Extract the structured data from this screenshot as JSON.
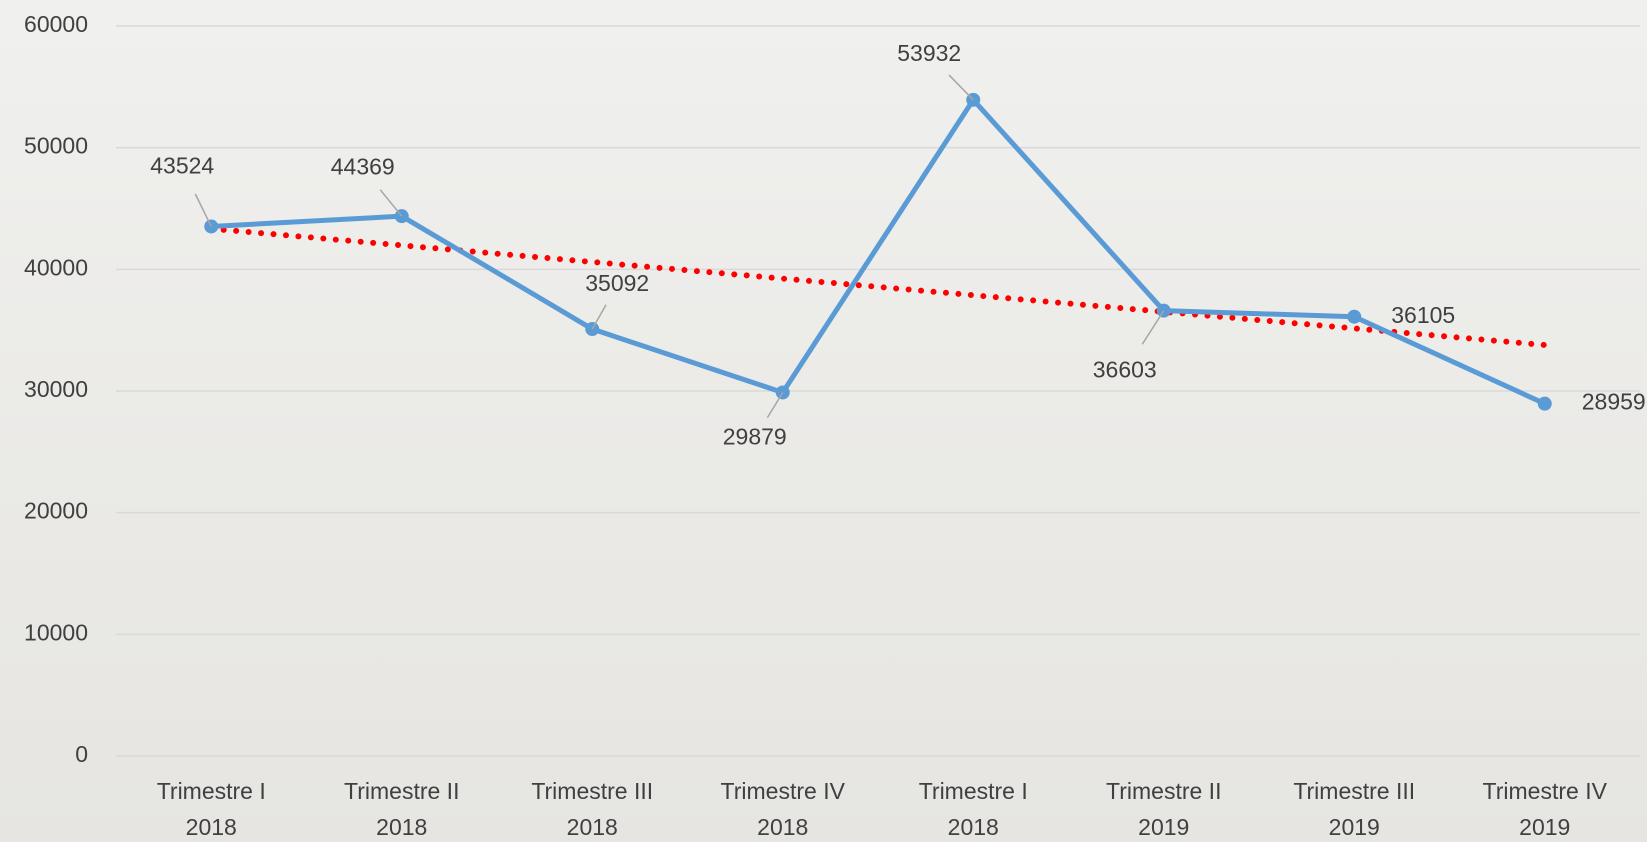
{
  "chart_data": {
    "type": "line",
    "categories": [
      [
        "Trimestre I",
        "2018"
      ],
      [
        "Trimestre II",
        "2018"
      ],
      [
        "Trimestre III",
        "2018"
      ],
      [
        "Trimestre IV",
        "2018"
      ],
      [
        "Trimestre I",
        "2018"
      ],
      [
        "Trimestre II",
        "2019"
      ],
      [
        "Trimestre III",
        "2019"
      ],
      [
        "Trimestre IV",
        "2019"
      ]
    ],
    "series": [
      {
        "color": "#5b9bd5",
        "values": [
          43524,
          44369,
          35092,
          29879,
          53932,
          36603,
          36105,
          28959
        ]
      }
    ],
    "trendline": {
      "type": "linear",
      "color": "#ff0000"
    },
    "ylim": [
      0,
      60000
    ],
    "yticks": [
      0,
      10000,
      20000,
      30000,
      40000,
      50000,
      60000
    ],
    "grid": true,
    "data_labels": true
  }
}
